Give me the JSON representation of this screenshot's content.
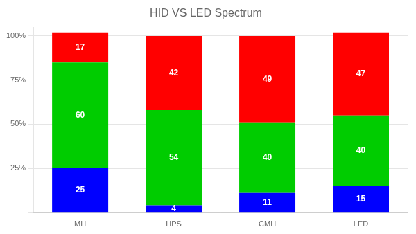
{
  "chart_data": {
    "type": "bar",
    "title": "HID VS LED Spectrum",
    "categories": [
      "MH",
      "HPS",
      "CMH",
      "LED"
    ],
    "series": [
      {
        "color": "#0000ff",
        "values": [
          25,
          4,
          11,
          15
        ]
      },
      {
        "color": "#00cc00",
        "values": [
          60,
          54,
          40,
          40
        ]
      },
      {
        "color": "#ff0000",
        "values": [
          17,
          42,
          49,
          47
        ]
      }
    ],
    "stacked": true,
    "data_labels": true,
    "ylim": [
      0,
      105
    ],
    "yticks": [
      {
        "value": 0,
        "label": ""
      },
      {
        "value": 25,
        "label": "25%"
      },
      {
        "value": 50,
        "label": "50%"
      },
      {
        "value": 75,
        "label": "75%"
      },
      {
        "value": 100,
        "label": "100%"
      }
    ],
    "grid": true
  }
}
